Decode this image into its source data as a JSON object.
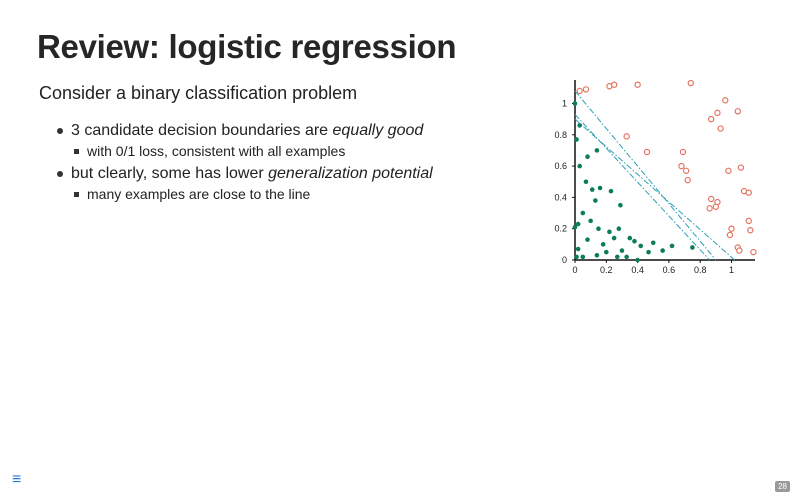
{
  "slide": {
    "title": "Review: logistic regression",
    "intro": "Consider a binary classification problem",
    "bullets": [
      {
        "text_before": "3 candidate decision boundaries are ",
        "text_em": "equally good",
        "sub": "with 0/1 loss, consistent with all examples"
      },
      {
        "text_before": "but clearly, some has lower ",
        "text_em": "generalization potential",
        "sub": "many examples are close to the line"
      }
    ],
    "menu_icon": "hamburger-menu-icon",
    "page_number": "28"
  },
  "chart_data": {
    "type": "scatter",
    "xlim": [
      0,
      1.15
    ],
    "ylim": [
      0,
      1.15
    ],
    "x_ticks": [
      "0",
      "0.2",
      "0.4",
      "0.6",
      "0.8",
      "1"
    ],
    "y_ticks": [
      "0",
      "0.2",
      "0.4",
      "0.6",
      "0.8",
      "1"
    ],
    "grid": false,
    "colors": {
      "positive": "#e47461",
      "negative": "#0b7d5a",
      "boundary": "#2d9fb3",
      "axis": "#111111"
    },
    "series": [
      {
        "points": [
          [
            0.03,
            1.08
          ],
          [
            0.07,
            1.09
          ],
          [
            0.22,
            1.11
          ],
          [
            0.25,
            1.12
          ],
          [
            0.4,
            1.12
          ],
          [
            0.74,
            1.13
          ],
          [
            0.96,
            1.02
          ],
          [
            1.04,
            0.95
          ],
          [
            0.87,
            0.9
          ],
          [
            0.91,
            0.94
          ],
          [
            0.93,
            0.84
          ],
          [
            0.33,
            0.79
          ],
          [
            0.46,
            0.69
          ],
          [
            0.69,
            0.69
          ],
          [
            0.68,
            0.6
          ],
          [
            0.71,
            0.57
          ],
          [
            0.72,
            0.51
          ],
          [
            0.98,
            0.57
          ],
          [
            1.06,
            0.59
          ],
          [
            1.08,
            0.44
          ],
          [
            1.11,
            0.43
          ],
          [
            0.87,
            0.39
          ],
          [
            0.91,
            0.37
          ],
          [
            0.86,
            0.33
          ],
          [
            0.9,
            0.34
          ],
          [
            1.0,
            0.2
          ],
          [
            0.99,
            0.16
          ],
          [
            1.11,
            0.25
          ],
          [
            1.12,
            0.19
          ],
          [
            1.04,
            0.08
          ],
          [
            1.05,
            0.06
          ],
          [
            1.14,
            0.05
          ]
        ]
      },
      {
        "points": [
          [
            0.0,
            1.0
          ],
          [
            0.03,
            0.86
          ],
          [
            0.01,
            0.77
          ],
          [
            0.14,
            0.7
          ],
          [
            0.08,
            0.66
          ],
          [
            0.03,
            0.6
          ],
          [
            0.07,
            0.5
          ],
          [
            0.11,
            0.45
          ],
          [
            0.16,
            0.46
          ],
          [
            0.23,
            0.44
          ],
          [
            0.13,
            0.38
          ],
          [
            0.29,
            0.35
          ],
          [
            0.05,
            0.3
          ],
          [
            0.1,
            0.25
          ],
          [
            0.02,
            0.23
          ],
          [
            0.0,
            0.21
          ],
          [
            0.15,
            0.2
          ],
          [
            0.22,
            0.18
          ],
          [
            0.28,
            0.2
          ],
          [
            0.25,
            0.14
          ],
          [
            0.35,
            0.14
          ],
          [
            0.38,
            0.12
          ],
          [
            0.42,
            0.09
          ],
          [
            0.47,
            0.05
          ],
          [
            0.3,
            0.06
          ],
          [
            0.2,
            0.05
          ],
          [
            0.14,
            0.03
          ],
          [
            0.02,
            0.07
          ],
          [
            0.01,
            0.02
          ],
          [
            0.33,
            0.02
          ],
          [
            0.5,
            0.11
          ],
          [
            0.56,
            0.06
          ],
          [
            0.62,
            0.09
          ],
          [
            0.75,
            0.08
          ],
          [
            0.08,
            0.13
          ],
          [
            0.18,
            0.1
          ],
          [
            0.4,
            0.0
          ],
          [
            0.05,
            0.02
          ],
          [
            0.27,
            0.02
          ]
        ]
      }
    ],
    "boundaries": [
      [
        [
          0.0,
          1.08
        ],
        [
          0.9,
          0.0
        ]
      ],
      [
        [
          0.0,
          0.93
        ],
        [
          0.86,
          0.0
        ]
      ],
      [
        [
          0.0,
          0.9
        ],
        [
          1.02,
          0.0
        ]
      ]
    ]
  }
}
